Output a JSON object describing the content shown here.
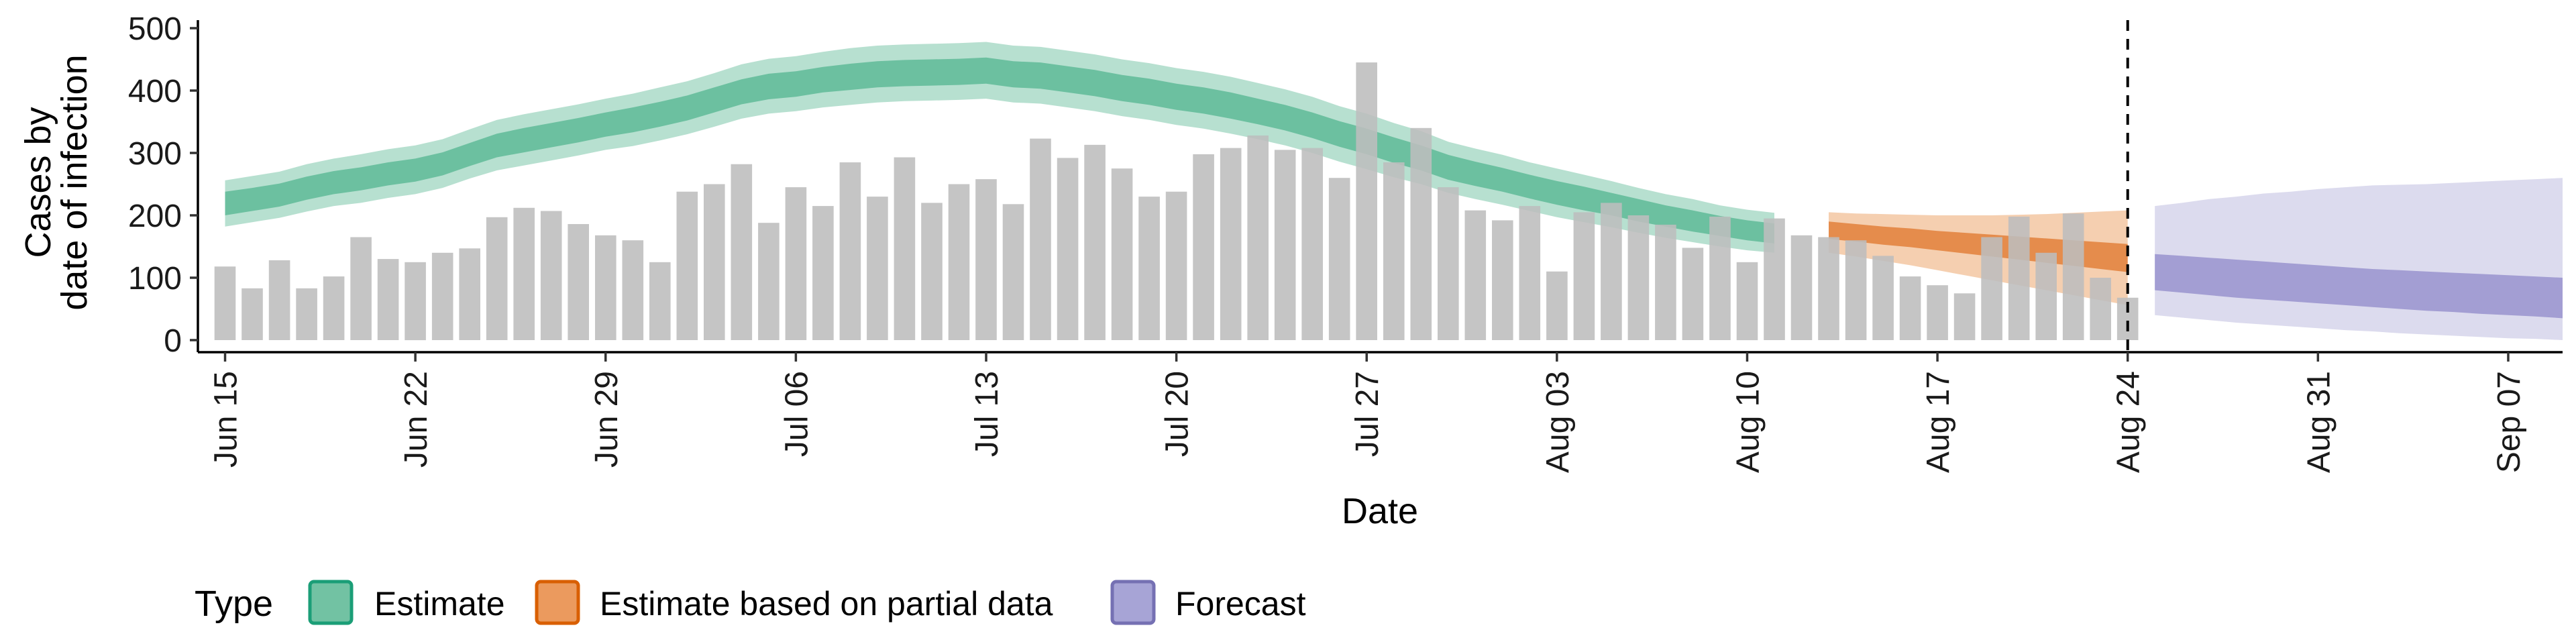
{
  "chart_data": {
    "type": "bar",
    "xlabel": "Date",
    "ylabel_lines": [
      "Cases by",
      "date of infection"
    ],
    "ylim": [
      0,
      500
    ],
    "yticks": [
      0,
      100,
      200,
      300,
      400,
      500
    ],
    "x_tick_labels": [
      "Jun 15",
      "Jun 22",
      "Jun 29",
      "Jul 06",
      "Jul 13",
      "Jul 20",
      "Jul 27",
      "Aug 03",
      "Aug 10",
      "Aug 17",
      "Aug 24",
      "Aug 31",
      "Sep 07"
    ],
    "x_range": [
      "2020-06-14",
      "2020-09-09"
    ],
    "vertical_line": "2020-08-24",
    "bars": {
      "start": "2020-06-15",
      "values": [
        118,
        83,
        128,
        83,
        102,
        165,
        130,
        125,
        140,
        147,
        197,
        212,
        207,
        186,
        168,
        160,
        125,
        238,
        250,
        282,
        188,
        245,
        215,
        285,
        230,
        293,
        220,
        250,
        258,
        218,
        323,
        292,
        313,
        275,
        230,
        238,
        298,
        308,
        328,
        305,
        308,
        260,
        445,
        285,
        340,
        245,
        208,
        192,
        215,
        110,
        205,
        220,
        200,
        185,
        148,
        198,
        125,
        195,
        168,
        165,
        160,
        135,
        102,
        88,
        75,
        165,
        198,
        140,
        203,
        100,
        68
      ]
    },
    "series": [
      {
        "name": "Estimate",
        "start": "2020-06-15",
        "median": [
          218,
          225,
          232,
          243,
          252,
          258,
          266,
          272,
          282,
          298,
          312,
          320,
          328,
          336,
          345,
          352,
          362,
          372,
          385,
          398,
          406,
          410,
          417,
          422,
          426,
          428,
          429,
          430,
          432,
          426,
          424,
          418,
          412,
          404,
          398,
          390,
          384,
          376,
          366,
          356,
          344,
          330,
          318,
          304,
          292,
          276,
          266,
          256,
          245,
          235,
          226,
          217,
          207,
          198,
          190,
          182,
          175,
          170
        ],
        "inner": [
          [
            200,
            238
          ],
          [
            207,
            244
          ],
          [
            214,
            251
          ],
          [
            225,
            262
          ],
          [
            234,
            271
          ],
          [
            240,
            277
          ],
          [
            248,
            285
          ],
          [
            254,
            291
          ],
          [
            264,
            301
          ],
          [
            279,
            316
          ],
          [
            293,
            331
          ],
          [
            301,
            340
          ],
          [
            309,
            348
          ],
          [
            317,
            356
          ],
          [
            326,
            365
          ],
          [
            333,
            373
          ],
          [
            342,
            382
          ],
          [
            352,
            392
          ],
          [
            365,
            405
          ],
          [
            378,
            418
          ],
          [
            386,
            427
          ],
          [
            390,
            431
          ],
          [
            397,
            438
          ],
          [
            401,
            443
          ],
          [
            405,
            447
          ],
          [
            407,
            449
          ],
          [
            408,
            450
          ],
          [
            409,
            451
          ],
          [
            411,
            453
          ],
          [
            405,
            447
          ],
          [
            403,
            445
          ],
          [
            397,
            439
          ],
          [
            391,
            433
          ],
          [
            383,
            425
          ],
          [
            377,
            419
          ],
          [
            369,
            411
          ],
          [
            363,
            405
          ],
          [
            355,
            397
          ],
          [
            346,
            387
          ],
          [
            336,
            377
          ],
          [
            324,
            365
          ],
          [
            310,
            351
          ],
          [
            298,
            339
          ],
          [
            284,
            325
          ],
          [
            272,
            312
          ],
          [
            257,
            297
          ],
          [
            247,
            286
          ],
          [
            238,
            276
          ],
          [
            227,
            265
          ],
          [
            217,
            255
          ],
          [
            208,
            246
          ],
          [
            200,
            236
          ],
          [
            190,
            226
          ],
          [
            182,
            216
          ],
          [
            174,
            208
          ],
          [
            167,
            199
          ],
          [
            160,
            192
          ],
          [
            155,
            187
          ]
        ],
        "outer": [
          [
            182,
            256
          ],
          [
            189,
            263
          ],
          [
            196,
            270
          ],
          [
            206,
            282
          ],
          [
            215,
            291
          ],
          [
            220,
            298
          ],
          [
            228,
            306
          ],
          [
            234,
            312
          ],
          [
            244,
            322
          ],
          [
            259,
            338
          ],
          [
            272,
            353
          ],
          [
            280,
            362
          ],
          [
            288,
            370
          ],
          [
            296,
            378
          ],
          [
            305,
            387
          ],
          [
            311,
            395
          ],
          [
            320,
            405
          ],
          [
            330,
            415
          ],
          [
            342,
            428
          ],
          [
            355,
            442
          ],
          [
            363,
            451
          ],
          [
            367,
            455
          ],
          [
            373,
            462
          ],
          [
            377,
            468
          ],
          [
            381,
            472
          ],
          [
            383,
            474
          ],
          [
            384,
            475
          ],
          [
            385,
            476
          ],
          [
            387,
            478
          ],
          [
            381,
            472
          ],
          [
            379,
            470
          ],
          [
            373,
            464
          ],
          [
            367,
            458
          ],
          [
            359,
            450
          ],
          [
            353,
            444
          ],
          [
            345,
            436
          ],
          [
            339,
            430
          ],
          [
            331,
            422
          ],
          [
            322,
            412
          ],
          [
            312,
            402
          ],
          [
            300,
            390
          ],
          [
            286,
            375
          ],
          [
            274,
            363
          ],
          [
            261,
            348
          ],
          [
            250,
            335
          ],
          [
            236,
            318
          ],
          [
            226,
            307
          ],
          [
            217,
            297
          ],
          [
            207,
            285
          ],
          [
            197,
            275
          ],
          [
            189,
            265
          ],
          [
            181,
            255
          ],
          [
            172,
            244
          ],
          [
            164,
            234
          ],
          [
            157,
            226
          ],
          [
            150,
            216
          ],
          [
            144,
            209
          ],
          [
            140,
            204
          ]
        ]
      },
      {
        "name": "Estimate based on partial data",
        "start": "2020-08-13",
        "median": [
          176,
          172,
          168,
          164,
          160,
          156,
          152,
          148,
          144,
          140,
          136,
          132
        ],
        "inner": [
          [
            162,
            190
          ],
          [
            158,
            186
          ],
          [
            153,
            182
          ],
          [
            149,
            179
          ],
          [
            144,
            175
          ],
          [
            139,
            172
          ],
          [
            134,
            169
          ],
          [
            129,
            166
          ],
          [
            124,
            163
          ],
          [
            119,
            160
          ],
          [
            114,
            157
          ],
          [
            109,
            154
          ]
        ],
        "outer": [
          [
            140,
            205
          ],
          [
            134,
            203
          ],
          [
            127,
            202
          ],
          [
            120,
            201
          ],
          [
            112,
            200
          ],
          [
            104,
            200
          ],
          [
            96,
            200
          ],
          [
            88,
            201
          ],
          [
            80,
            202
          ],
          [
            72,
            204
          ],
          [
            64,
            206
          ],
          [
            56,
            208
          ]
        ]
      },
      {
        "name": "Forecast",
        "start": "2020-08-25",
        "median": [
          110,
          106,
          102,
          98,
          95,
          92,
          89,
          86,
          83,
          80,
          78,
          76,
          74,
          72,
          70,
          68
        ],
        "inner": [
          [
            80,
            138
          ],
          [
            76,
            135
          ],
          [
            72,
            132
          ],
          [
            68,
            129
          ],
          [
            65,
            126
          ],
          [
            62,
            123
          ],
          [
            59,
            120
          ],
          [
            56,
            117
          ],
          [
            53,
            114
          ],
          [
            50,
            112
          ],
          [
            47,
            110
          ],
          [
            45,
            108
          ],
          [
            42,
            106
          ],
          [
            40,
            104
          ],
          [
            38,
            102
          ],
          [
            35,
            100
          ]
        ],
        "outer": [
          [
            40,
            215
          ],
          [
            36,
            220
          ],
          [
            32,
            226
          ],
          [
            28,
            230
          ],
          [
            25,
            235
          ],
          [
            22,
            238
          ],
          [
            19,
            242
          ],
          [
            16,
            245
          ],
          [
            14,
            248
          ],
          [
            11,
            249
          ],
          [
            9,
            250
          ],
          [
            7,
            252
          ],
          [
            5,
            254
          ],
          [
            3,
            256
          ],
          [
            2,
            258
          ],
          [
            0,
            260
          ]
        ]
      }
    ],
    "legend": {
      "title": "Type",
      "position": "bottom",
      "items": [
        {
          "label": "Estimate",
          "fill": "#72c2a3",
          "stroke": "#1b9e77"
        },
        {
          "label": "Estimate based on partial data",
          "fill": "#eb9a5e",
          "stroke": "#d95f02"
        },
        {
          "label": "Forecast",
          "fill": "#a7a4d6",
          "stroke": "#7570b3"
        }
      ]
    },
    "colors": {
      "bars": "#bdbdbd",
      "estimate_outer": "#b7e0d0",
      "estimate_inner": "#6cc0a0",
      "partial_outer": "#f5cfb0",
      "partial_inner": "#e58c4c",
      "forecast_outer": "#dcdbee",
      "forecast_inner": "#a39ed3"
    }
  }
}
